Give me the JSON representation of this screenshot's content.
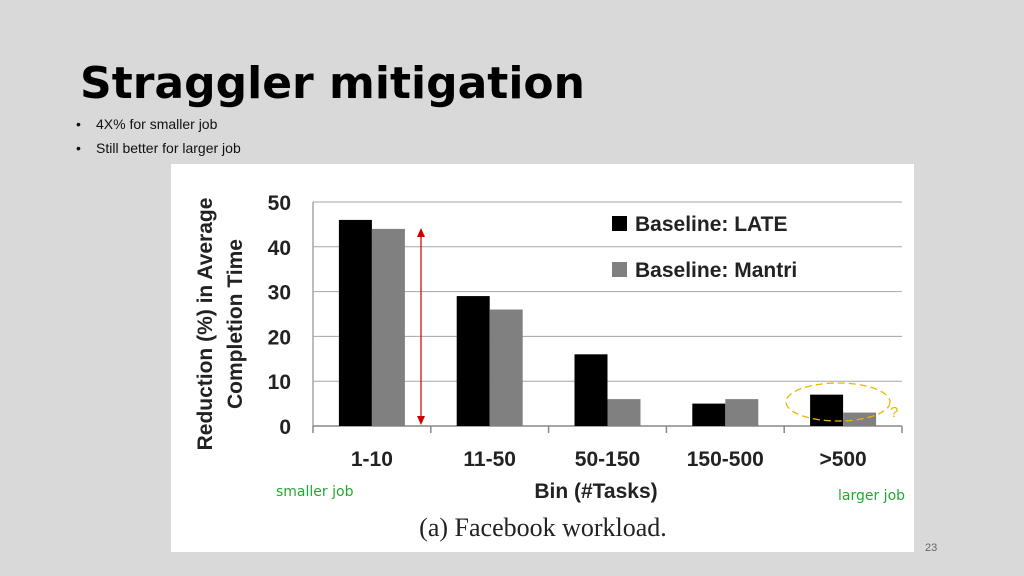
{
  "slide": {
    "title": "Straggler mitigation",
    "bullets": [
      "4X% for smaller job",
      "Still better for larger job"
    ],
    "page_number": "23"
  },
  "annotations": {
    "smaller": "smaller job",
    "larger": "larger job",
    "question": "?"
  },
  "chart_data": {
    "type": "bar",
    "ylabel": "Reduction (%) in Average Completion Time",
    "ylabel_lines": [
      "Reduction (%) in Average",
      "Completion Time"
    ],
    "xlabel": "Bin (#Tasks)",
    "caption": "(a) Facebook workload.",
    "categories": [
      "1-10",
      "11-50",
      "50-150",
      "150-500",
      ">500"
    ],
    "series": [
      {
        "name": "Baseline: LATE",
        "values": [
          46,
          29,
          16,
          5,
          7
        ],
        "color": "#000000"
      },
      {
        "name": "Baseline: Mantri",
        "values": [
          44,
          26,
          6,
          6,
          3
        ],
        "color": "#808080"
      }
    ],
    "ylim": [
      0,
      50
    ],
    "yticks": [
      0,
      10,
      20,
      30,
      40,
      50
    ],
    "grid": true,
    "legend_position": "top-right",
    "accent_colors": {
      "arrow": "#cc0000",
      "highlight": "#e6b800",
      "annotation_text": "#22a832"
    }
  }
}
